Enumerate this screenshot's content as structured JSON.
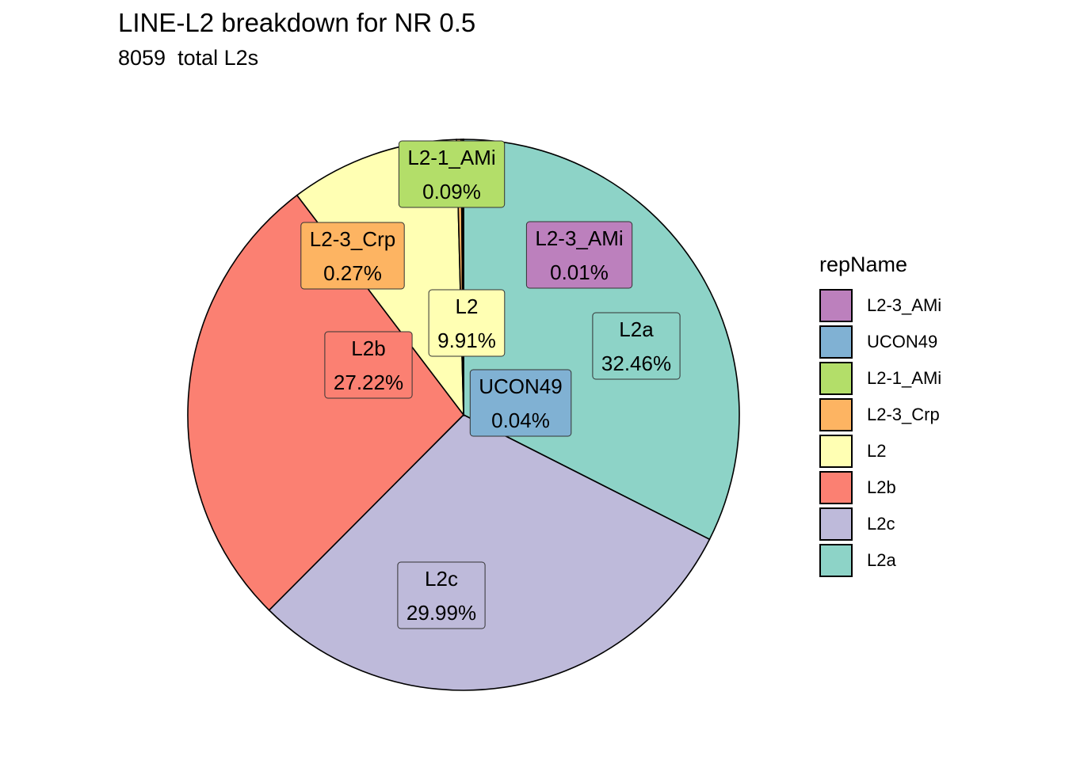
{
  "chart_data": {
    "type": "pie",
    "title": "LINE-L2 breakdown for NR 0.5",
    "subtitle": "8059  total L2s",
    "legend": {
      "title": "repName",
      "position": "right",
      "entries": [
        "L2-3_AMi",
        "UCON49",
        "L2-1_AMi",
        "L2-3_Crp",
        "L2",
        "L2b",
        "L2c",
        "L2a"
      ]
    },
    "slices": [
      {
        "name": "L2a",
        "value": 32.46,
        "label": "32.46%",
        "color": "#8DD3C7"
      },
      {
        "name": "L2c",
        "value": 29.99,
        "label": "29.99%",
        "color": "#BEBADA"
      },
      {
        "name": "L2b",
        "value": 27.22,
        "label": "27.22%",
        "color": "#FB8072"
      },
      {
        "name": "L2",
        "value": 9.91,
        "label": "9.91%",
        "color": "#FFFFB3"
      },
      {
        "name": "L2-3_Crp",
        "value": 0.27,
        "label": "0.27%",
        "color": "#FDB462"
      },
      {
        "name": "L2-1_AMi",
        "value": 0.09,
        "label": "0.09%",
        "color": "#B3DE69"
      },
      {
        "name": "UCON49",
        "value": 0.04,
        "label": "0.04%",
        "color": "#80B1D3"
      },
      {
        "name": "L2-3_AMi",
        "value": 0.01,
        "label": "0.01%",
        "color": "#BC80BD"
      }
    ]
  }
}
